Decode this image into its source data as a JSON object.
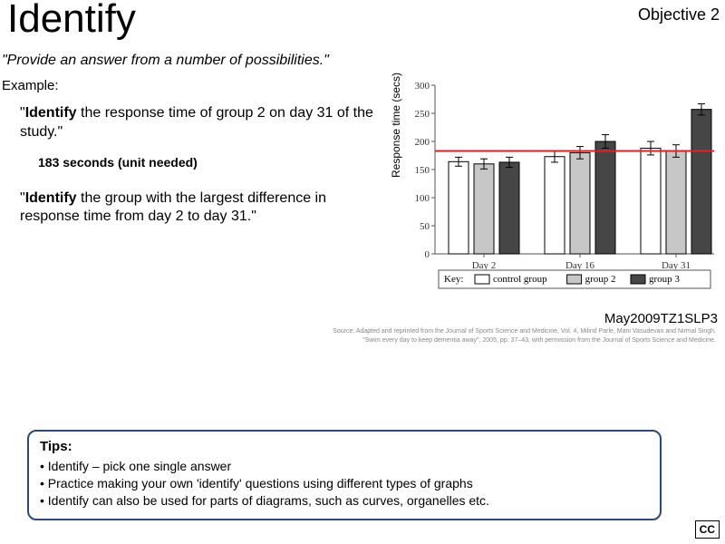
{
  "header": {
    "title": "Identify",
    "objective": "Objective 2"
  },
  "subtitle": "\"Provide an answer from a number of possibilities.\"",
  "example": {
    "label": "Example:",
    "q1_prefix": "\"",
    "q1_bold": "Identify",
    "q1_rest": " the response time of group 2 on day 31 of the study.\"",
    "answer": "183 seconds (unit needed)",
    "q2_prefix": "\"",
    "q2_bold": "Identify",
    "q2_rest": " the group with the largest difference in response time from day 2 to day 31.\""
  },
  "chart": {
    "type": "bar",
    "ylabel": "Response time (secs)",
    "ylim": [
      0,
      300
    ],
    "ytick_step": 50,
    "categories": [
      "Day 2",
      "Day 16",
      "Day 31"
    ],
    "series": [
      {
        "name": "control group",
        "fill": "#ffffff",
        "stroke": "#000000",
        "values": [
          164,
          173,
          188
        ],
        "err": [
          8,
          10,
          12
        ]
      },
      {
        "name": "group 2",
        "fill": "#c7c7c7",
        "stroke": "#000000",
        "values": [
          160,
          180,
          183
        ],
        "err": [
          9,
          11,
          11
        ]
      },
      {
        "name": "group 3",
        "fill": "#464646",
        "stroke": "#000000",
        "values": [
          163,
          200,
          257
        ],
        "err": [
          9,
          12,
          10
        ]
      }
    ],
    "highlight_line_y": 183,
    "highlight_color": "#e62020",
    "axis_color": "#555555",
    "grid": false,
    "bar_gap": 6,
    "group_gap": 28,
    "legend_label": "Key:",
    "legend_border": "#555555",
    "font_size_axis": 11
  },
  "citation": "May2009TZ1SLP3",
  "fineprint1": "Source: Adapted and reprinted from the Journal of Sports Science and Medicine, Vol. 4, Milind Parle, Mani Vasudevan and Nirmal Singh,",
  "fineprint2": "\"Swim every day to keep dementia away\", 2005, pp. 37–43, with permission from the Journal of Sports Science and Medicine.",
  "tips": {
    "title": "Tips:",
    "items": [
      "Identify – pick one single answer",
      "Practice making your own 'identify' questions using different types of graphs",
      "Identify can also be used for parts of diagrams, such as curves, organelles etc."
    ]
  },
  "cc": "CC"
}
